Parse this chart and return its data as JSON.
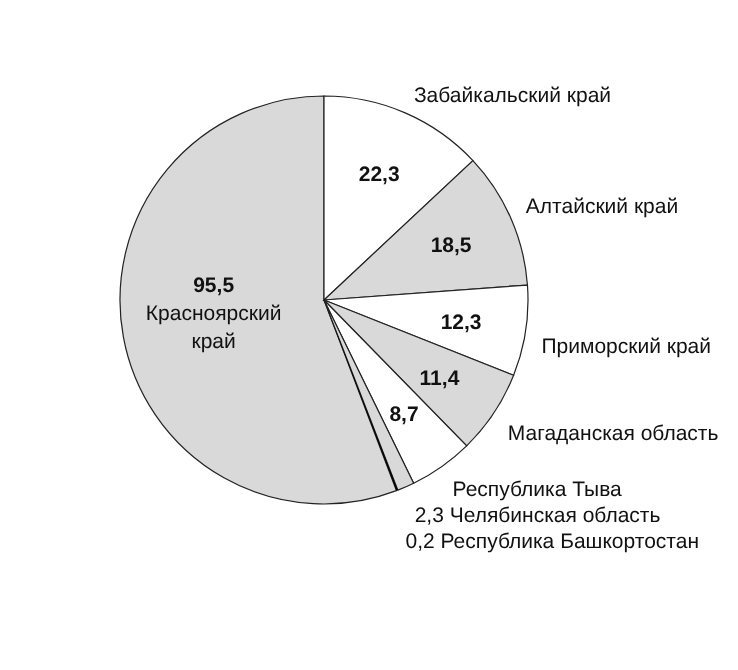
{
  "chart_data": {
    "type": "pie",
    "categories": [
      "Забайкальский край",
      "Алтайский край",
      "Приморский край",
      "Магаданская область",
      "Республика Тыва",
      "Челябинская область",
      "Республика Башкортостан",
      "Красноярский край"
    ],
    "values": [
      22.3,
      18.5,
      12.3,
      11.4,
      8.7,
      2.3,
      0.2,
      95.5
    ],
    "value_labels": [
      "22,3",
      "18,5",
      "12,3",
      "11,4",
      "8,7",
      "2,3",
      "0,2",
      "95,5"
    ],
    "colors": [
      "#ffffff",
      "#d9d9d9",
      "#ffffff",
      "#d9d9d9",
      "#ffffff",
      "#d9d9d9",
      "#000000",
      "#d9d9d9"
    ]
  }
}
